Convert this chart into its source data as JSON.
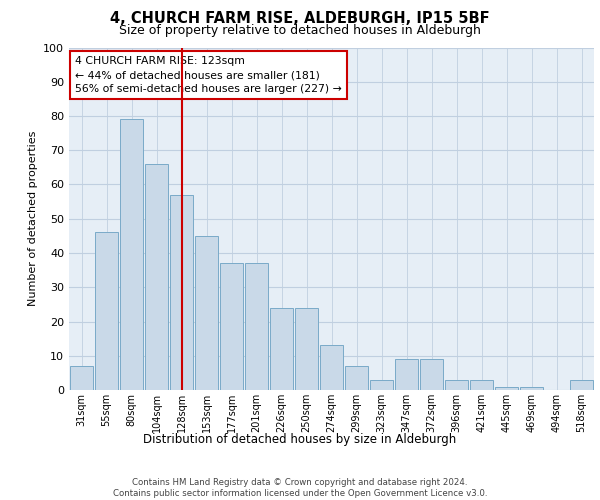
{
  "title": "4, CHURCH FARM RISE, ALDEBURGH, IP15 5BF",
  "subtitle": "Size of property relative to detached houses in Aldeburgh",
  "xlabel": "Distribution of detached houses by size in Aldeburgh",
  "ylabel": "Number of detached properties",
  "bar_labels": [
    "31sqm",
    "55sqm",
    "80sqm",
    "104sqm",
    "128sqm",
    "153sqm",
    "177sqm",
    "201sqm",
    "226sqm",
    "250sqm",
    "274sqm",
    "299sqm",
    "323sqm",
    "347sqm",
    "372sqm",
    "396sqm",
    "421sqm",
    "445sqm",
    "469sqm",
    "494sqm",
    "518sqm"
  ],
  "bar_heights": [
    7,
    46,
    79,
    66,
    57,
    45,
    37,
    37,
    24,
    24,
    13,
    7,
    3,
    9,
    9,
    3,
    3,
    1,
    1,
    0,
    3
  ],
  "bar_color": "#c9d9e8",
  "bar_edge_color": "#7aaac8",
  "annotation_text": "4 CHURCH FARM RISE: 123sqm\n← 44% of detached houses are smaller (181)\n56% of semi-detached houses are larger (227) →",
  "vline_position": 4.0,
  "vline_color": "#cc0000",
  "annotation_box_color": "#ffffff",
  "annotation_box_edge": "#cc0000",
  "grid_color": "#c0cfe0",
  "plot_background": "#e6eef6",
  "ylim": [
    0,
    100
  ],
  "yticks": [
    0,
    10,
    20,
    30,
    40,
    50,
    60,
    70,
    80,
    90,
    100
  ],
  "footer_line1": "Contains HM Land Registry data © Crown copyright and database right 2024.",
  "footer_line2": "Contains public sector information licensed under the Open Government Licence v3.0."
}
